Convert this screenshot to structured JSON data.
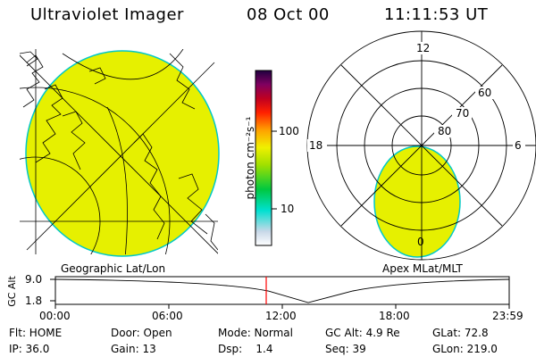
{
  "header": {
    "title": "Ultraviolet Imager",
    "date": "08 Oct 00",
    "time": "11:11:53 UT"
  },
  "colorbar": {
    "unit": "photon cm⁻²s⁻¹",
    "ticks": [
      "100",
      "10"
    ]
  },
  "panels": {
    "left_label": "Geographic Lat/Lon",
    "right_label": "Apex MLat/MLT"
  },
  "polar": {
    "mlt_labels": [
      "12",
      "18",
      "6",
      "0"
    ],
    "lat_labels": [
      "60",
      "70",
      "80"
    ]
  },
  "altitude": {
    "axis_label": "GC Alt",
    "y_ticks": [
      "9.0",
      "1.8"
    ],
    "x_ticks": [
      "00:00",
      "06:00",
      "12:00",
      "18:00",
      "23:59"
    ],
    "marker_color": "#ff0000"
  },
  "status": {
    "flt": "Flt: HOME",
    "door": "Door: Open",
    "mode": "Mode: Normal",
    "gc_alt": "GC Alt: 4.9 Re",
    "glat": "GLat:  72.8",
    "ip": "IP: 36.0",
    "gain": "Gain: 13",
    "dsp": "Dsp:    1.4",
    "seq": "Seq: 39",
    "glon": "GLon: 219.0"
  },
  "colors": {
    "aurora_fill": "#e6f000",
    "aurora_edge": "#00c8c8"
  }
}
